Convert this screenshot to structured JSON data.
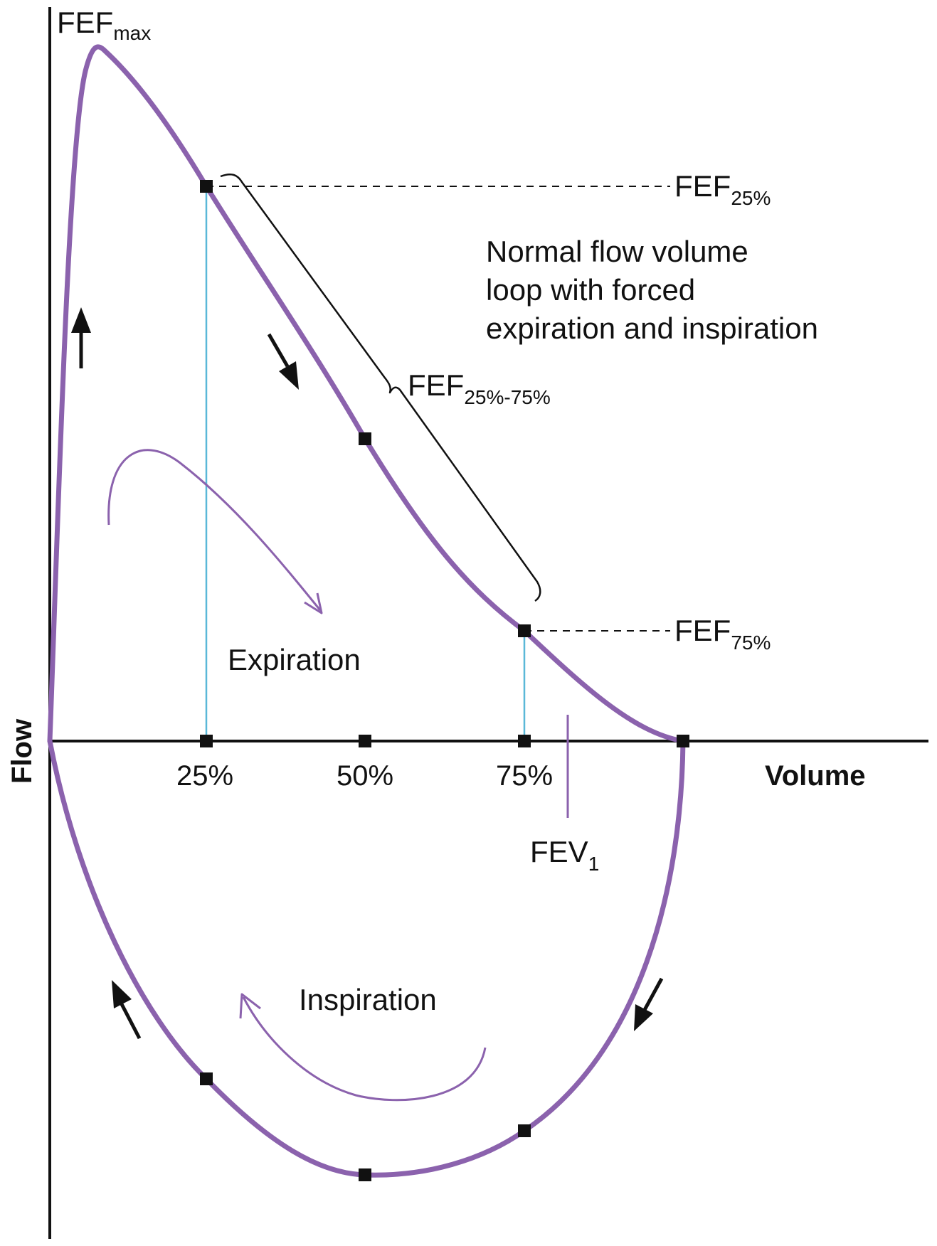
{
  "diagram": {
    "axis_labels": {
      "x": "Volume",
      "y": "Flow"
    },
    "ticks": [
      "25%",
      "50%",
      "75%"
    ],
    "description_lines": [
      "Normal flow volume",
      "loop with forced",
      "expiration and inspiration"
    ],
    "phases": {
      "expiration": "Expiration",
      "inspiration": "Inspiration"
    },
    "markers": {
      "fef_max": {
        "base": "FEF",
        "sub": "max"
      },
      "fef_25": {
        "base": "FEF",
        "sub": "25%"
      },
      "fef_75": {
        "base": "FEF",
        "sub": "75%"
      },
      "fef_25_75": {
        "base": "FEF",
        "sub": "25%-75%"
      },
      "fev1": {
        "base": "FEV",
        "sub": "1"
      }
    },
    "colors": {
      "loop": "#8b62ad",
      "guide": "#5ab8d8",
      "ink": "#111111",
      "background": "#ffffff"
    }
  }
}
